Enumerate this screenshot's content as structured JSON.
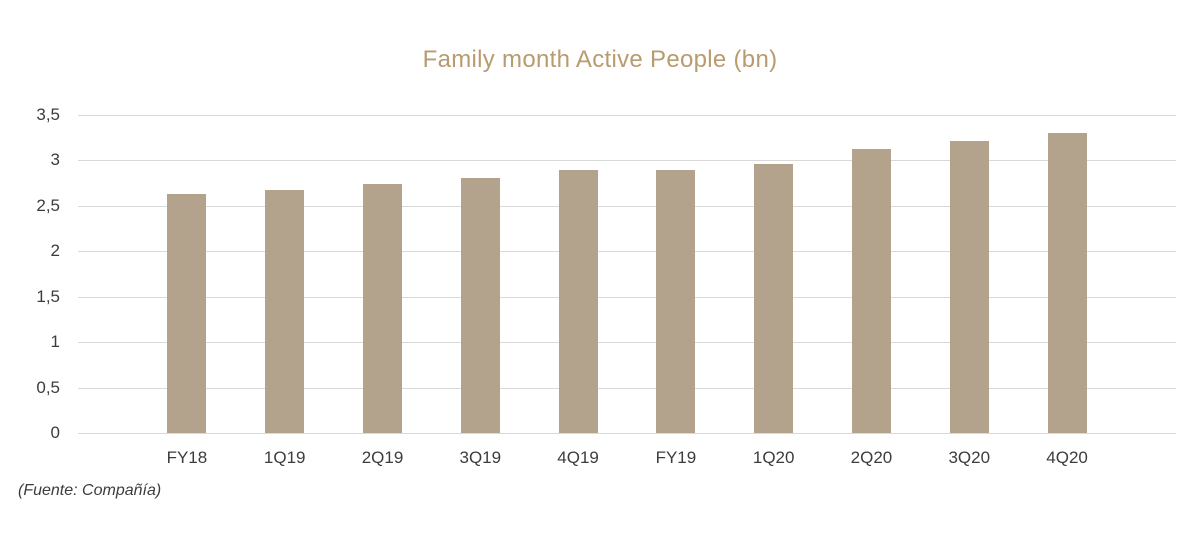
{
  "chart": {
    "title": "Family month Active People (bn)",
    "source_note": "(Fuente: Compañía)"
  },
  "colors": {
    "bar": "#b3a28c",
    "title": "#b89b6e",
    "grid": "#d9d9d9",
    "axis_text": "#3c3c3b",
    "background": "#ffffff"
  },
  "chart_data": {
    "type": "bar",
    "title": "Family month Active People (bn)",
    "categories": [
      "FY18",
      "1Q19",
      "2Q19",
      "3Q19",
      "4Q19",
      "FY19",
      "1Q20",
      "2Q20",
      "3Q20",
      "4Q20"
    ],
    "values": [
      2.63,
      2.67,
      2.74,
      2.81,
      2.89,
      2.89,
      2.96,
      3.13,
      3.21,
      3.3
    ],
    "xlabel": "",
    "ylabel": "",
    "ylim": [
      0,
      3.5
    ],
    "ytick_step": 0.5,
    "ytick_labels": [
      "0",
      "0,5",
      "1",
      "1,5",
      "2",
      "2,5",
      "3",
      "3,5"
    ],
    "decimal_separator": ",",
    "grid": "horizontal",
    "legend": "none",
    "annotation": "(Fuente: Compañía)"
  }
}
